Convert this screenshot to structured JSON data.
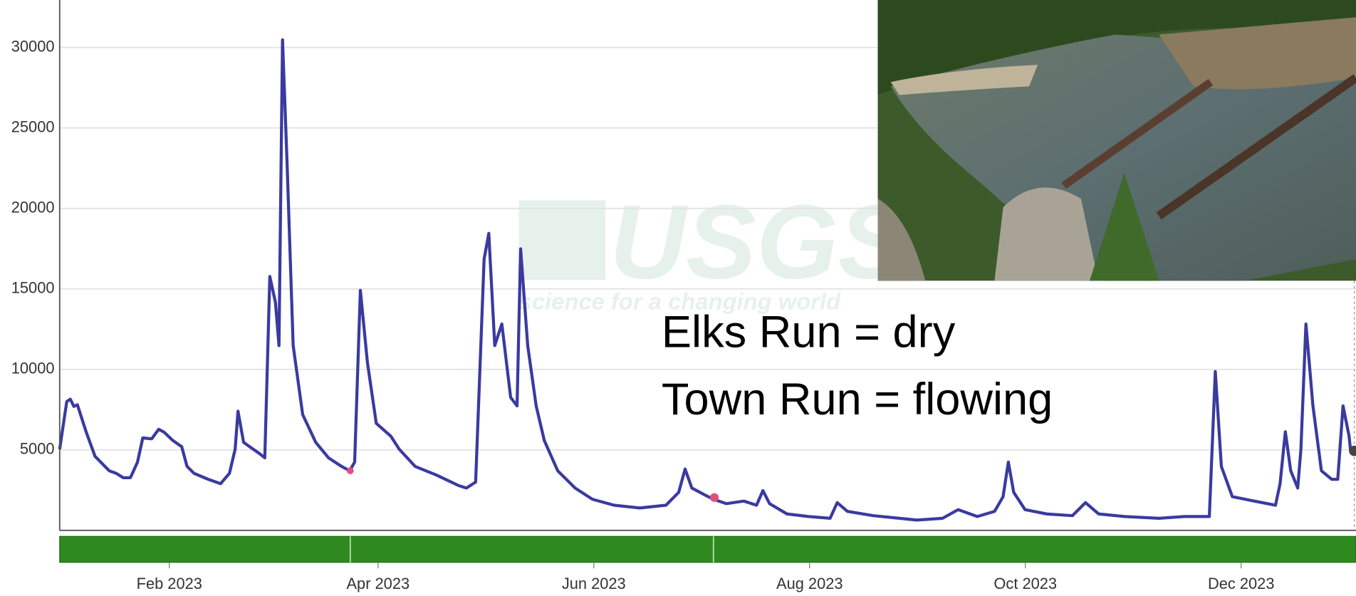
{
  "chart_data": {
    "type": "line",
    "watermark": {
      "title": "USGS",
      "subtitle": "science for a changing world"
    },
    "annotations": [
      "Elks Run = dry",
      "Town Run = flowing"
    ],
    "color": "#3a3aa0",
    "grid": true,
    "xlim": [
      0,
      365
    ],
    "xticks": [
      {
        "value": 31,
        "label": "Feb 2023"
      },
      {
        "value": 90,
        "label": "Apr 2023"
      },
      {
        "value": 151,
        "label": "Jun 2023"
      },
      {
        "value": 212,
        "label": "Aug 2023"
      },
      {
        "value": 273,
        "label": "Oct 2023"
      },
      {
        "value": 334,
        "label": "Dec 2023"
      }
    ],
    "ylim": [
      0,
      33000
    ],
    "yticks": [
      5000,
      10000,
      15000,
      20000,
      25000,
      30000
    ],
    "x": [
      0,
      2,
      3,
      4,
      5,
      7.5,
      10,
      14,
      16,
      18,
      20,
      22,
      23.5,
      26,
      28,
      29.5,
      32,
      34.5,
      36,
      38,
      42,
      45.5,
      48,
      49.6,
      50.4,
      52,
      54,
      56.5,
      58,
      59.4,
      61,
      62,
      63,
      64.3,
      66,
      68.7,
      72.4,
      76,
      79.7,
      82,
      83.4,
      85,
      87,
      89.5,
      93.6,
      96,
      100.5,
      106.6,
      112.7,
      115,
      117.6,
      120,
      121.3,
      123,
      125,
      127.5,
      129.3,
      130.3,
      132.3,
      134.7,
      137,
      140.8,
      145.7,
      150.6,
      156.7,
      164,
      171.4,
      175,
      176.8,
      178.7,
      182.4,
      184.8,
      188.5,
      193.4,
      197,
      198.8,
      200.7,
      205.6,
      211.7,
      217.8,
      219.8,
      222.7,
      230,
      237.4,
      242.3,
      249.6,
      254,
      259.4,
      264.3,
      266.7,
      268.2,
      269.7,
      272.9,
      279,
      286.3,
      290,
      293.7,
      301,
      310.8,
      318,
      325,
      326.7,
      328.4,
      331.5,
      337.7,
      343.7,
      345,
      346.5,
      348,
      350,
      350.9,
      352.3,
      354.3,
      356.7,
      359.6,
      361.3,
      362.8,
      364.5,
      365
    ],
    "values": [
      5040,
      8000,
      8150,
      7700,
      7800,
      6100,
      4600,
      3700,
      3540,
      3270,
      3270,
      4240,
      5740,
      5690,
      6280,
      6100,
      5580,
      5200,
      3970,
      3540,
      3170,
      2900,
      3540,
      5040,
      7400,
      5470,
      5150,
      4770,
      4500,
      15770,
      14160,
      11480,
      30470,
      22750,
      11480,
      7190,
      5470,
      4500,
      3970,
      3700,
      4240,
      14910,
      10410,
      6650,
      5850,
      5040,
      3970,
      3430,
      2790,
      2630,
      3000,
      16850,
      18450,
      11480,
      12820,
      8260,
      7730,
      17490,
      11480,
      7730,
      5580,
      3700,
      2630,
      1930,
      1560,
      1390,
      1560,
      2360,
      3810,
      2630,
      2200,
      1930,
      1660,
      1820,
      1560,
      2470,
      1660,
      1020,
      860,
      750,
      1720,
      1180,
      910,
      750,
      640,
      750,
      1290,
      860,
      1180,
      2090,
      4240,
      2360,
      1290,
      1020,
      910,
      1720,
      1020,
      860,
      750,
      860,
      860,
      9870,
      3970,
      2090,
      1820,
      1560,
      2900,
      6120,
      3700,
      2630,
      5040,
      12820,
      7730,
      3700,
      3170,
      3170,
      7730,
      5850,
      4800
    ]
  }
}
